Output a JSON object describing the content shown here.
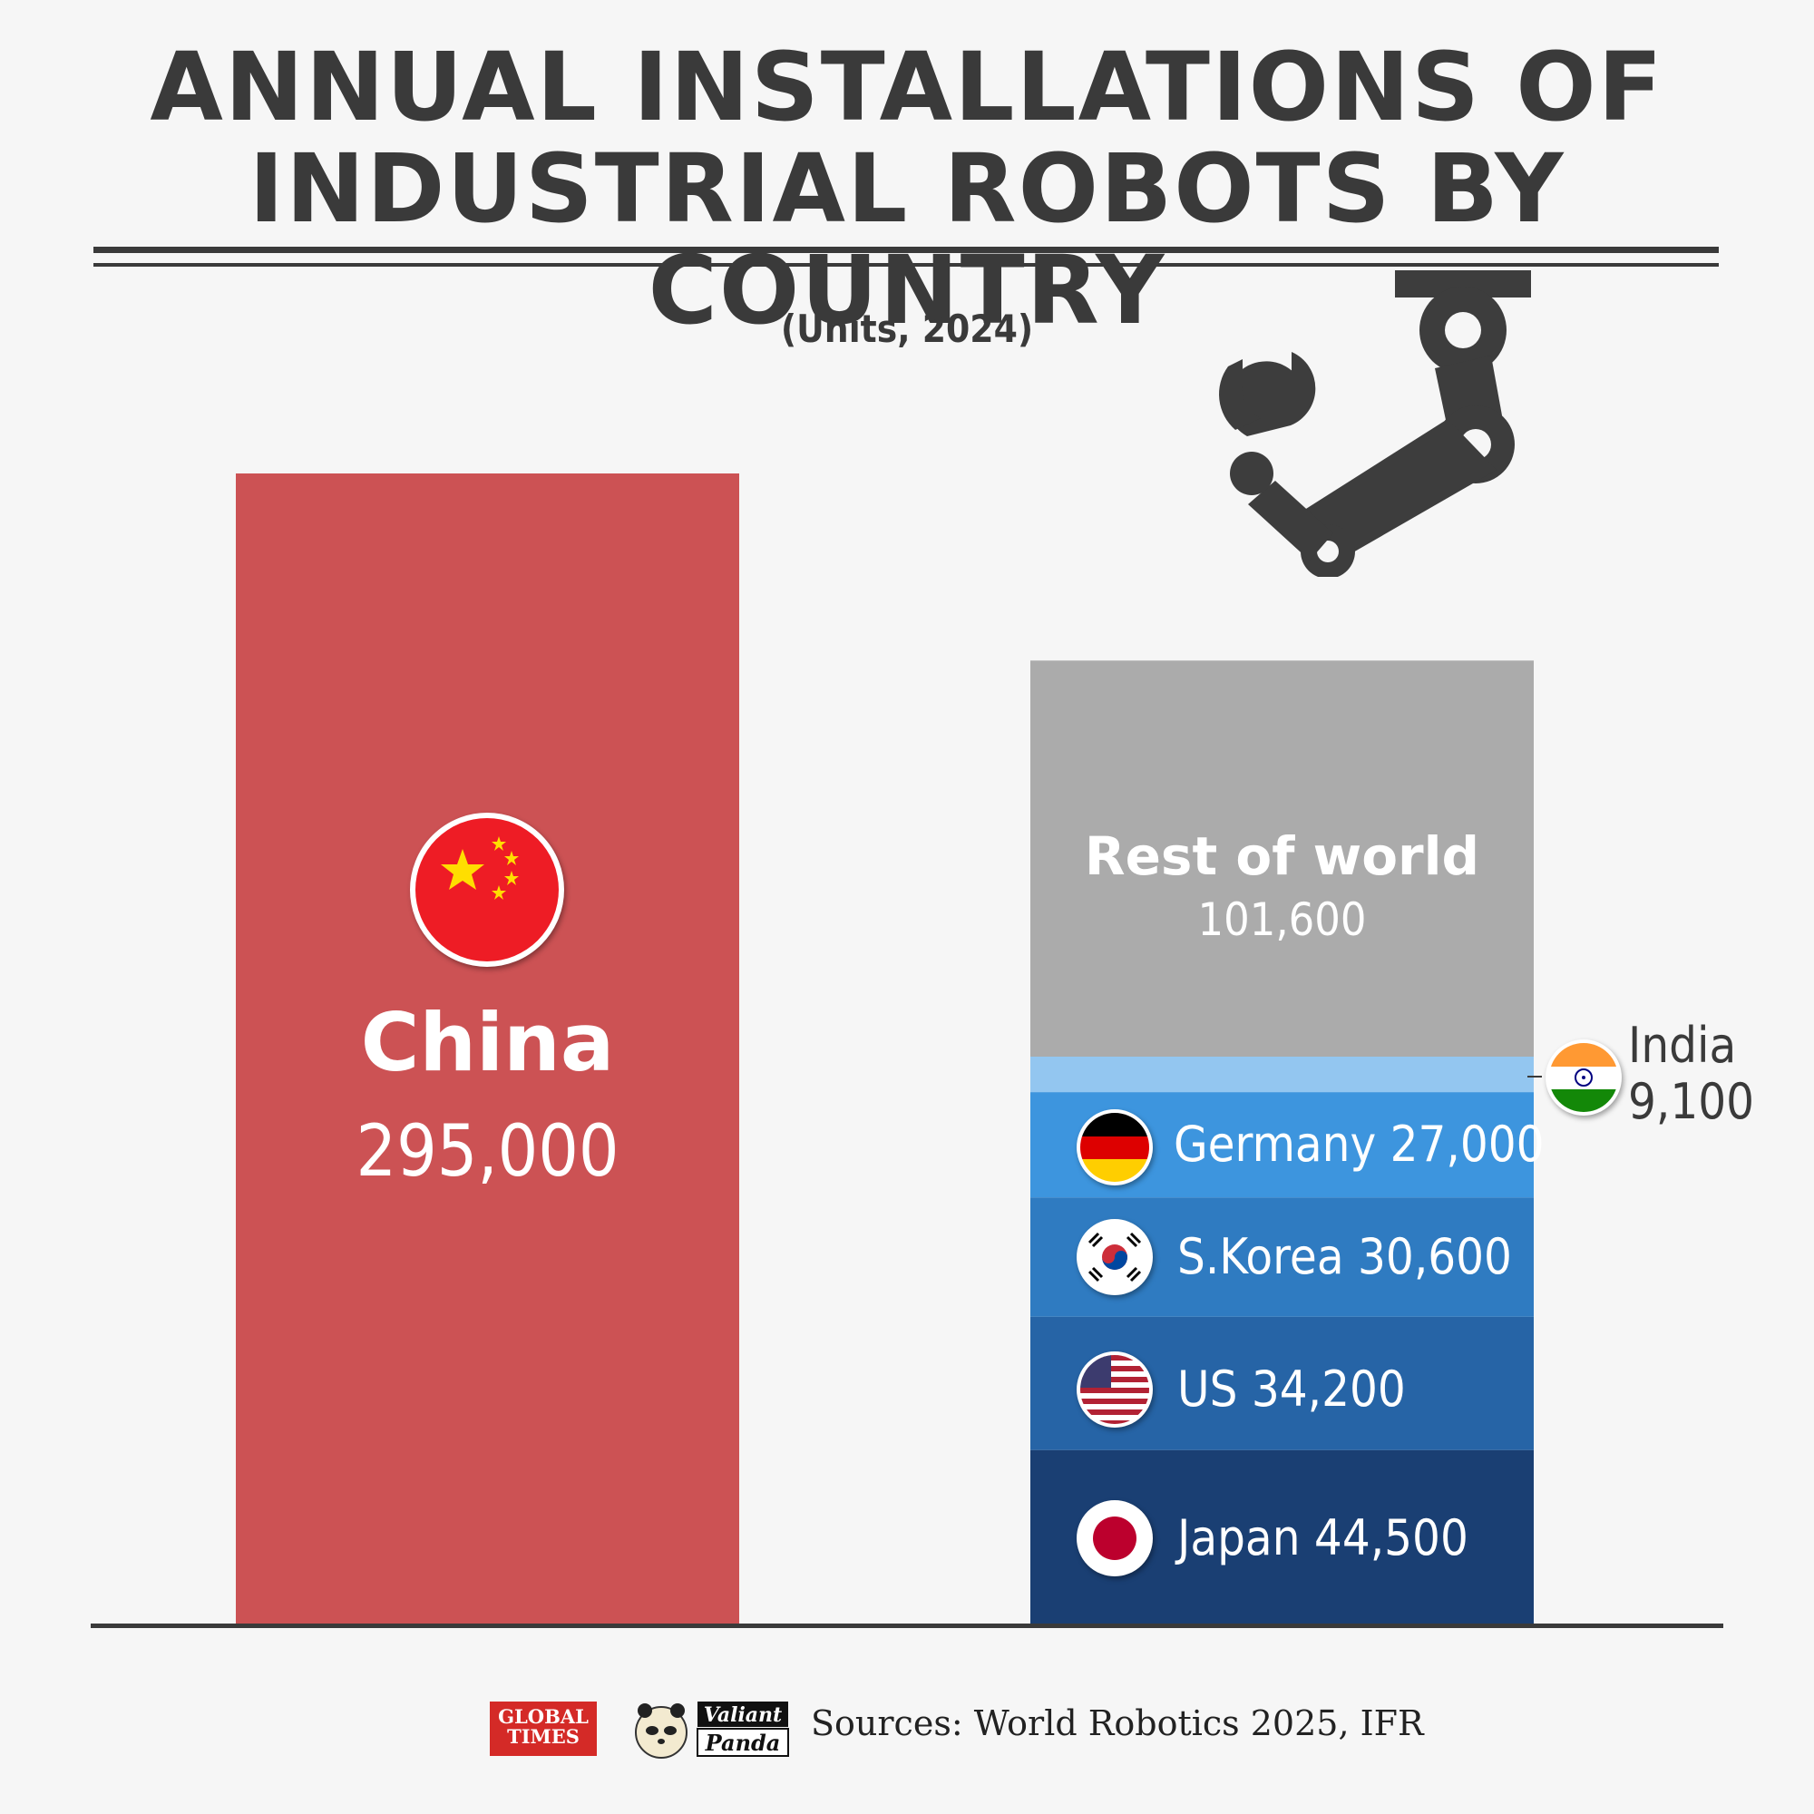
{
  "title_lines": [
    "ANNUAL INSTALLATIONS OF",
    "INDUSTRIAL ROBOTS BY COUNTRY"
  ],
  "subtitle": "(Units, 2024)",
  "colors": {
    "china": "#cc5254",
    "rest_of_world": "#ababab",
    "india": "#93c6f0",
    "germany": "#3d95de",
    "s_korea": "#2f7bc1",
    "us": "#2664a6",
    "japan": "#1a3f73",
    "ink": "#3a3a3a"
  },
  "chart_data": {
    "type": "bar",
    "stacked": true,
    "units": "Units, 2024",
    "bars": [
      {
        "name": "China",
        "segments": [
          {
            "label": "China",
            "value": 295000,
            "display": "295,000",
            "color": "#cc5254",
            "icon": "china-flag-icon"
          }
        ]
      },
      {
        "name": "",
        "segments": [
          {
            "label": "Japan",
            "value": 44500,
            "display": "44,500",
            "color": "#1a3f73",
            "icon": "japan-flag-icon"
          },
          {
            "label": "US",
            "value": 34200,
            "display": "34,200",
            "color": "#2664a6",
            "icon": "us-flag-icon"
          },
          {
            "label": "S.Korea",
            "value": 30600,
            "display": "30,600",
            "color": "#2f7bc1",
            "icon": "south-korea-flag-icon"
          },
          {
            "label": "Germany",
            "value": 27000,
            "display": "27,000",
            "color": "#3d95de",
            "icon": "germany-flag-icon"
          },
          {
            "label": "India",
            "value": 9100,
            "display": "9,100",
            "color": "#93c6f0",
            "icon": "india-flag-icon"
          },
          {
            "label": "Rest of world",
            "value": 101600,
            "display": "101,600",
            "color": "#ababab"
          }
        ]
      }
    ]
  },
  "labels": {
    "china_name": "China",
    "china_value": "295,000",
    "row_name": "Rest of world",
    "row_value": "101,600",
    "germany": "Germany 27,000",
    "s_korea": "S.Korea 30,600",
    "us": "US 34,200",
    "japan": "Japan 44,500",
    "india_name": "India",
    "india_value": "9,100"
  },
  "footer": {
    "gt_logo_line1": "GLOBAL",
    "gt_logo_line2": "TIMES",
    "vp_logo_line1": "Valiant",
    "vp_logo_line2": "Panda",
    "source": "Sources: World Robotics 2025, IFR"
  }
}
